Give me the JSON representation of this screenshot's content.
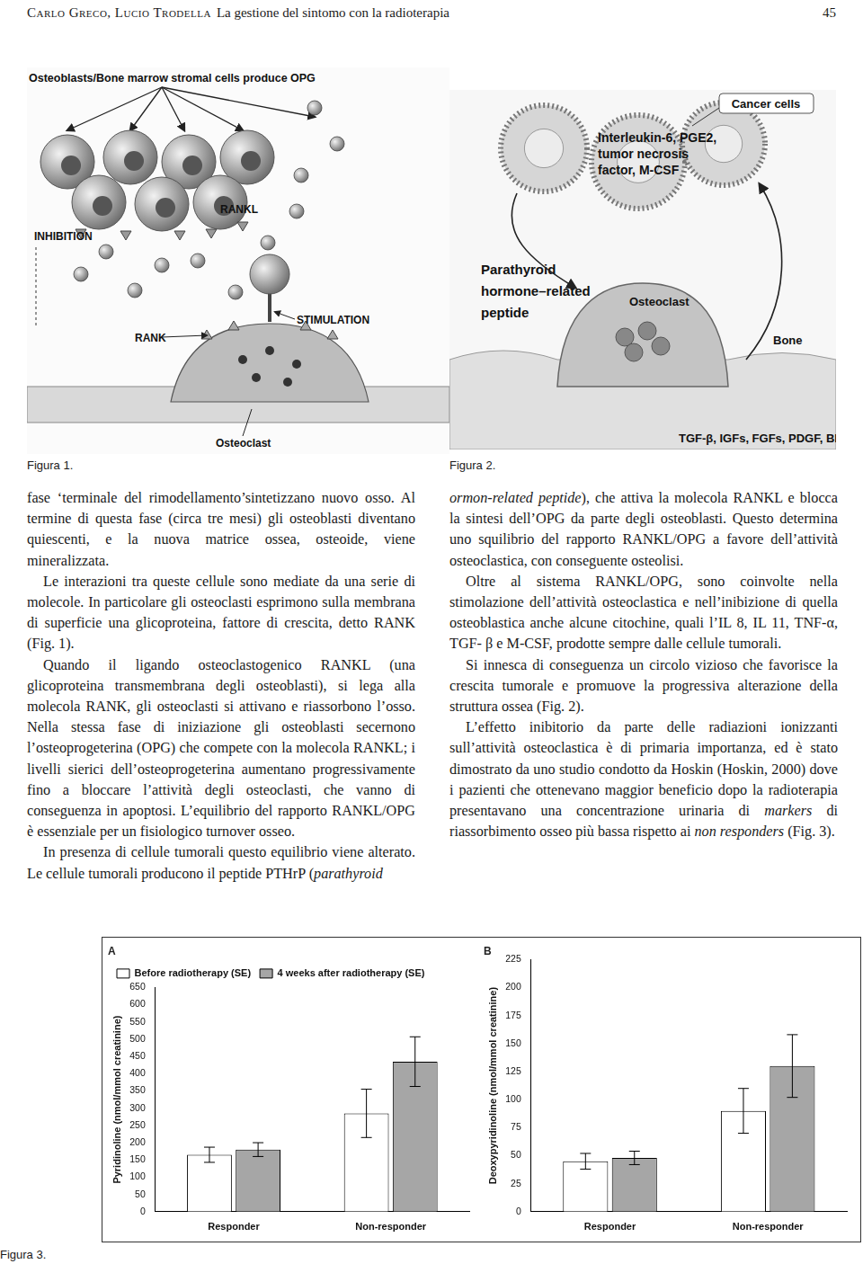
{
  "header": {
    "authors": "Carlo Greco, Lucio Trodella",
    "title": "La gestione del sintomo con la radioterapia",
    "page": "45"
  },
  "figure1": {
    "caption": "Figura 1.",
    "labels": {
      "top": "Osteoblasts/Bone marrow stromal cells produce OPG",
      "rankl": "RANKL",
      "inhibition": "INHIBITION",
      "rank": "RANK",
      "stimulation": "STIMULATION",
      "osteoclast": "Osteoclast"
    }
  },
  "figure2": {
    "caption": "Figura 2.",
    "labels": {
      "cancer": "Cancer cells",
      "cytokines": [
        "Interleukin-6, PGE2,",
        "tumor necrosis",
        "factor, M-CSF"
      ],
      "pthrp": [
        "Parathyroid",
        "hormone–related",
        "peptide"
      ],
      "osteoclast": "Osteoclast",
      "bone": "Bone",
      "factors": "TGF-β, IGFs, FGFs, PDGF, BMPs"
    }
  },
  "columns": [
    [
      [
        "fase ‘terminale del rimodellamento’sintetizzano nuovo osso. Al termine di questa fase (circa tre mesi) gli osteoblasti diventano quiescenti, e la nuova matrice ossea, osteoide, viene mineralizzata."
      ],
      [
        "Le interazioni tra queste cellule sono mediate da una serie di molecole. In particolare gli osteoclasti esprimono sulla membrana di superficie una glicoproteina, fattore di crescita, detto RANK (Fig. 1)."
      ],
      [
        "Quando il ligando osteoclastogenico RANKL (una glicoproteina transmembrana degli osteoblasti), si lega alla molecola RANK, gli osteoclasti si attivano e riassorbono l’osso. Nella stessa fase di iniziazione gli osteoblasti secernono l’osteoprogeterina (OPG) che compete con la molecola RANKL; i livelli sierici dell’osteoprogeterina aumentano progressivamente fino a bloccare l’attività degli osteoclasti, che vanno di conseguenza in apoptosi. L’equilibrio del rapporto RANKL/OPG è essenziale per un fisiologico turnover osseo."
      ],
      [
        "In presenza di cellule tumorali questo equilibrio viene alterato. Le cellule tumorali producono il peptide PTHrP (",
        {
          "text": "parathyroid",
          "italic": true
        }
      ]
    ],
    [
      [
        {
          "text": "ormon-related peptide",
          "italic": true
        },
        "), che attiva la molecola RANKL e blocca la sintesi dell’OPG da parte degli osteoblasti. Questo determina uno squilibrio del rapporto RANKL/OPG a favore dell’attività osteoclastica, con conseguente osteolisi."
      ],
      [
        "Oltre al sistema RANKL/OPG, sono coinvolte nella stimolazione dell’attività osteoclastica e nell’inibizione di quella osteoblastica anche alcune citochine, quali l’IL 8, IL 11, TNF-α, TGF- β e M-CSF, prodotte sempre dalle cellule tumorali."
      ],
      [
        "Si innesca di conseguenza un circolo vizioso che favorisce la crescita tumorale e promuove la progressiva alterazione della struttura ossea (Fig. 2)."
      ],
      [
        "L’effetto inibitorio da parte delle radiazioni ionizzanti sull’attività osteoclastica è di primaria importanza, ed è stato dimostrato da uno studio condotto da Hoskin (Hoskin, 2000) dove i pazienti che ottenevano maggior beneficio dopo la radioterapia presentavano una concentrazione urinaria di ",
        {
          "text": "markers",
          "italic": true
        },
        " di riassorbimento osseo più bassa rispetto ai ",
        {
          "text": "non responders",
          "italic": true
        },
        " (Fig. 3)."
      ]
    ]
  ],
  "figure3": {
    "caption": "Figura 3."
  },
  "chart_data": [
    {
      "type": "bar",
      "title": "A",
      "categories": [
        "Responder",
        "Non-responder"
      ],
      "y_label": "Pyridinoline (nmol/mmol creatinine)",
      "series": [
        {
          "name": "Before radiotherapy (SE)",
          "color": "#ffffff",
          "values": [
            165,
            285
          ],
          "errors": [
            22,
            70
          ]
        },
        {
          "name": "4 weeks after radiotherapy (SE)",
          "color": "#a6a6a6",
          "values": [
            180,
            435
          ],
          "errors": [
            20,
            72
          ]
        }
      ],
      "ylim": [
        0,
        650
      ],
      "yticks": [
        0,
        50,
        100,
        150,
        200,
        250,
        300,
        350,
        400,
        450,
        500,
        550,
        600,
        650
      ],
      "legend": "upper left",
      "grid": false
    },
    {
      "type": "bar",
      "title": "B",
      "categories": [
        "Responder",
        "Non-responder"
      ],
      "y_label": "Deoxypyridinoline (nmol/mmol creatinine)",
      "series": [
        {
          "color": "#ffffff",
          "values": [
            45,
            90
          ],
          "errors": [
            7,
            20
          ]
        },
        {
          "color": "#a6a6a6",
          "values": [
            48,
            130
          ],
          "errors": [
            6,
            28
          ]
        }
      ],
      "ylim": [
        0,
        225
      ],
      "yticks": [
        0,
        25,
        50,
        75,
        100,
        125,
        150,
        175,
        200,
        225
      ],
      "grid": false
    }
  ]
}
